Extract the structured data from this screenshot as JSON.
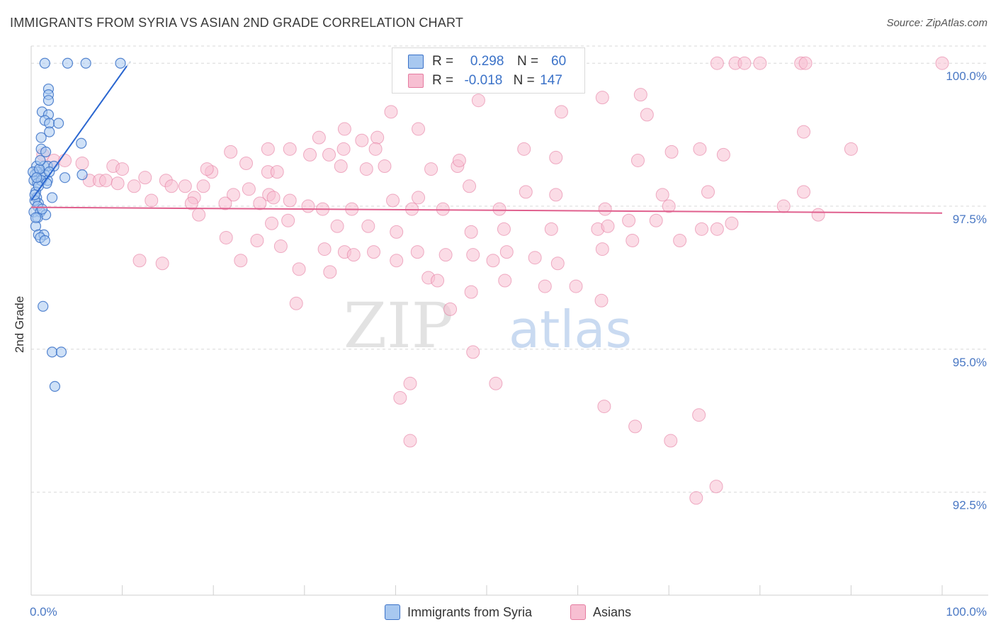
{
  "header": {
    "title": "IMMIGRANTS FROM SYRIA VS ASIAN 2ND GRADE CORRELATION CHART",
    "source": "Source: ZipAtlas.com"
  },
  "watermark": {
    "zip": "ZIP",
    "atlas": "atlas"
  },
  "legend": {
    "rows": [
      {
        "r_label": "R =",
        "r_value": "0.298",
        "n_label": "N =",
        "n_value": "60"
      },
      {
        "r_label": "R =",
        "r_value": "-0.018",
        "n_label": "N =",
        "n_value": "147"
      }
    ]
  },
  "bottom_legend": [
    "Immigrants from Syria",
    "Asians"
  ],
  "chart_data": {
    "type": "scatter",
    "title": "IMMIGRANTS FROM SYRIA VS ASIAN 2ND GRADE CORRELATION CHART",
    "xlabel": "",
    "ylabel": "2nd Grade",
    "xlim": [
      0,
      100
    ],
    "ylim": [
      90.7,
      100.3
    ],
    "x_tick_labels": [
      "0.0%",
      "100.0%"
    ],
    "y_ticks": [
      92.5,
      95.0,
      97.5,
      100.0
    ],
    "y_tick_labels": [
      "92.5%",
      "95.0%",
      "97.5%",
      "100.0%"
    ],
    "grid": true,
    "legend_position": "top-center",
    "colors": {
      "syria_fill": "#a8c8f0",
      "syria_stroke": "#3b72c8",
      "syria_line": "#2a66d0",
      "asian_fill": "#f7bfd2",
      "asian_stroke": "#e57ba0",
      "asian_line": "#e0608e",
      "grid": "#d8d8d8",
      "tick_text": "#4a78c4"
    },
    "series": [
      {
        "name": "Immigrants from Syria",
        "R": 0.298,
        "N": 60,
        "trend": {
          "x": [
            0.0,
            10.5
          ],
          "y": [
            97.6,
            99.95
          ]
        },
        "points": [
          [
            1.5,
            100.0
          ],
          [
            4.0,
            100.0
          ],
          [
            6.0,
            100.0
          ],
          [
            9.8,
            100.0
          ],
          [
            1.9,
            99.55
          ],
          [
            1.9,
            99.45
          ],
          [
            1.9,
            99.35
          ],
          [
            1.2,
            99.15
          ],
          [
            1.9,
            99.1
          ],
          [
            1.5,
            99.0
          ],
          [
            2.0,
            98.95
          ],
          [
            3.0,
            98.95
          ],
          [
            2.0,
            98.8
          ],
          [
            1.1,
            98.7
          ],
          [
            5.5,
            98.6
          ],
          [
            1.1,
            98.5
          ],
          [
            1.6,
            98.45
          ],
          [
            0.6,
            98.2
          ],
          [
            1.4,
            98.2
          ],
          [
            1.8,
            98.2
          ],
          [
            2.5,
            98.2
          ],
          [
            0.7,
            98.1
          ],
          [
            1.5,
            98.05
          ],
          [
            0.4,
            98.05
          ],
          [
            1.3,
            98.0
          ],
          [
            1.8,
            97.95
          ],
          [
            0.3,
            97.95
          ],
          [
            0.7,
            97.9
          ],
          [
            3.7,
            98.0
          ],
          [
            5.6,
            98.05
          ],
          [
            1.1,
            97.95
          ],
          [
            0.5,
            97.75
          ],
          [
            0.6,
            97.65
          ],
          [
            0.8,
            97.55
          ],
          [
            2.3,
            97.65
          ],
          [
            0.4,
            97.6
          ],
          [
            0.7,
            97.5
          ],
          [
            0.3,
            97.4
          ],
          [
            1.0,
            97.4
          ],
          [
            1.6,
            97.35
          ],
          [
            0.7,
            97.3
          ],
          [
            0.5,
            97.15
          ],
          [
            0.8,
            97.0
          ],
          [
            1.4,
            97.0
          ],
          [
            1.0,
            96.95
          ],
          [
            1.5,
            96.9
          ],
          [
            1.3,
            95.75
          ],
          [
            2.3,
            94.95
          ],
          [
            3.3,
            94.95
          ],
          [
            2.6,
            94.35
          ],
          [
            0.2,
            98.1
          ],
          [
            0.9,
            98.15
          ],
          [
            1.7,
            97.9
          ],
          [
            0.5,
            97.3
          ],
          [
            1.2,
            97.45
          ],
          [
            0.8,
            97.85
          ],
          [
            2.0,
            98.1
          ],
          [
            0.6,
            98.0
          ],
          [
            1.0,
            98.3
          ],
          [
            0.4,
            97.7
          ]
        ]
      },
      {
        "name": "Asians",
        "R": -0.018,
        "N": 147,
        "trend": {
          "x": [
            0,
            100
          ],
          "y": [
            97.48,
            97.38
          ]
        },
        "points": [
          [
            75.3,
            100.0
          ],
          [
            77.3,
            100.0
          ],
          [
            78.3,
            100.0
          ],
          [
            80.0,
            100.0
          ],
          [
            84.5,
            100.0
          ],
          [
            85.0,
            100.0
          ],
          [
            100.0,
            100.0
          ],
          [
            62.7,
            99.4
          ],
          [
            66.9,
            99.45
          ],
          [
            49.1,
            99.35
          ],
          [
            39.5,
            99.15
          ],
          [
            58.2,
            99.15
          ],
          [
            34.4,
            98.85
          ],
          [
            67.6,
            99.1
          ],
          [
            84.8,
            98.8
          ],
          [
            38.0,
            98.7
          ],
          [
            42.5,
            98.85
          ],
          [
            31.6,
            98.7
          ],
          [
            36.3,
            98.65
          ],
          [
            26.0,
            98.5
          ],
          [
            37.8,
            98.5
          ],
          [
            21.9,
            98.45
          ],
          [
            28.4,
            98.5
          ],
          [
            30.6,
            98.4
          ],
          [
            32.7,
            98.4
          ],
          [
            23.6,
            98.25
          ],
          [
            34.0,
            98.2
          ],
          [
            38.8,
            98.2
          ],
          [
            26.0,
            98.1
          ],
          [
            19.8,
            98.1
          ],
          [
            19.3,
            98.15
          ],
          [
            27.0,
            98.1
          ],
          [
            36.8,
            98.15
          ],
          [
            43.9,
            98.15
          ],
          [
            46.8,
            98.2
          ],
          [
            47.0,
            98.3
          ],
          [
            34.3,
            98.5
          ],
          [
            54.1,
            98.5
          ],
          [
            57.6,
            98.35
          ],
          [
            66.6,
            98.3
          ],
          [
            70.3,
            98.45
          ],
          [
            76.0,
            98.4
          ],
          [
            73.4,
            98.5
          ],
          [
            90.0,
            98.5
          ],
          [
            1.3,
            98.4
          ],
          [
            2.5,
            98.3
          ],
          [
            3.7,
            98.3
          ],
          [
            5.6,
            98.25
          ],
          [
            9.0,
            98.2
          ],
          [
            10.0,
            98.15
          ],
          [
            12.5,
            98.0
          ],
          [
            6.4,
            97.95
          ],
          [
            7.5,
            97.95
          ],
          [
            8.2,
            97.95
          ],
          [
            9.5,
            97.9
          ],
          [
            11.3,
            97.85
          ],
          [
            14.8,
            97.95
          ],
          [
            16.9,
            97.85
          ],
          [
            18.9,
            97.85
          ],
          [
            23.9,
            97.8
          ],
          [
            26.1,
            97.7
          ],
          [
            15.4,
            97.85
          ],
          [
            17.9,
            97.65
          ],
          [
            22.2,
            97.7
          ],
          [
            26.6,
            97.65
          ],
          [
            28.4,
            97.6
          ],
          [
            39.7,
            97.6
          ],
          [
            42.5,
            97.65
          ],
          [
            48.1,
            97.85
          ],
          [
            54.3,
            97.75
          ],
          [
            57.6,
            97.7
          ],
          [
            69.3,
            97.7
          ],
          [
            74.3,
            97.75
          ],
          [
            84.8,
            97.75
          ],
          [
            17.6,
            97.55
          ],
          [
            21.3,
            97.55
          ],
          [
            25.1,
            97.55
          ],
          [
            30.4,
            97.5
          ],
          [
            32.0,
            97.45
          ],
          [
            35.2,
            97.45
          ],
          [
            41.8,
            97.45
          ],
          [
            45.2,
            97.45
          ],
          [
            51.4,
            97.45
          ],
          [
            63.0,
            97.45
          ],
          [
            70.0,
            97.5
          ],
          [
            82.6,
            97.5
          ],
          [
            86.4,
            97.35
          ],
          [
            13.2,
            97.6
          ],
          [
            18.4,
            97.35
          ],
          [
            26.4,
            97.2
          ],
          [
            28.2,
            97.25
          ],
          [
            33.6,
            97.15
          ],
          [
            37.0,
            97.15
          ],
          [
            40.1,
            97.05
          ],
          [
            48.3,
            97.05
          ],
          [
            51.9,
            97.1
          ],
          [
            57.1,
            97.1
          ],
          [
            62.2,
            97.1
          ],
          [
            63.3,
            97.15
          ],
          [
            65.6,
            97.25
          ],
          [
            68.6,
            97.25
          ],
          [
            73.6,
            97.1
          ],
          [
            75.3,
            97.1
          ],
          [
            76.9,
            97.2
          ],
          [
            21.4,
            96.95
          ],
          [
            24.8,
            96.9
          ],
          [
            27.4,
            96.8
          ],
          [
            32.2,
            96.75
          ],
          [
            34.4,
            96.7
          ],
          [
            35.4,
            96.65
          ],
          [
            37.6,
            96.7
          ],
          [
            40.1,
            96.55
          ],
          [
            42.4,
            96.7
          ],
          [
            45.5,
            96.65
          ],
          [
            48.5,
            96.65
          ],
          [
            50.7,
            96.55
          ],
          [
            52.2,
            96.7
          ],
          [
            55.3,
            96.6
          ],
          [
            57.8,
            96.5
          ],
          [
            62.7,
            96.75
          ],
          [
            66.0,
            96.9
          ],
          [
            71.2,
            96.9
          ],
          [
            11.9,
            96.55
          ],
          [
            14.4,
            96.5
          ],
          [
            23.0,
            96.55
          ],
          [
            29.4,
            96.4
          ],
          [
            32.8,
            96.35
          ],
          [
            43.6,
            96.25
          ],
          [
            44.6,
            96.2
          ],
          [
            48.3,
            96.0
          ],
          [
            52.0,
            96.2
          ],
          [
            56.4,
            96.1
          ],
          [
            59.8,
            96.1
          ],
          [
            62.6,
            95.85
          ],
          [
            29.1,
            95.8
          ],
          [
            46.0,
            95.7
          ],
          [
            48.5,
            94.95
          ],
          [
            40.5,
            94.15
          ],
          [
            41.6,
            93.4
          ],
          [
            41.6,
            94.4
          ],
          [
            51.0,
            94.4
          ],
          [
            62.9,
            94.0
          ],
          [
            66.3,
            93.65
          ],
          [
            70.2,
            93.4
          ],
          [
            73.3,
            93.85
          ],
          [
            73.0,
            92.4
          ],
          [
            75.2,
            92.6
          ]
        ]
      }
    ]
  }
}
